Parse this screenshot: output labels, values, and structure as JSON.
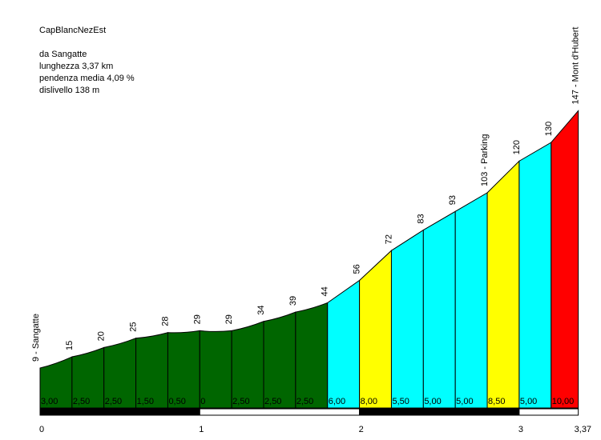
{
  "info": {
    "name": "CapBlancNezEst",
    "start": "da Sangatte",
    "length": "lunghezza 3,37 km",
    "avg_gradient": "pendenza media 4,09 %",
    "elevation_gain": "dislivello 138 m"
  },
  "colors": {
    "dark_green": "#006600",
    "cyan": "#00ffff",
    "yellow": "#ffff00",
    "red": "#ff0000",
    "outline": "#000000"
  },
  "chart_data": {
    "type": "area",
    "xlim": [
      0,
      3.37
    ],
    "ylim": [
      9,
      147
    ],
    "x_ticks": [
      {
        "value": 0,
        "label": "0"
      },
      {
        "value": 1,
        "label": "1"
      },
      {
        "value": 2,
        "label": "2"
      },
      {
        "value": 3,
        "label": "3"
      },
      {
        "value": 3.37,
        "label": "3,37"
      }
    ],
    "points": [
      {
        "x": 0,
        "elev": 9,
        "label": "9 - Sangatte"
      },
      {
        "x": 0.2,
        "elev": 15,
        "label": "15"
      },
      {
        "x": 0.4,
        "elev": 20,
        "label": "20"
      },
      {
        "x": 0.6,
        "elev": 25,
        "label": "25"
      },
      {
        "x": 0.8,
        "elev": 28,
        "label": "28"
      },
      {
        "x": 1.0,
        "elev": 29,
        "label": "29"
      },
      {
        "x": 1.2,
        "elev": 29,
        "label": "29"
      },
      {
        "x": 1.4,
        "elev": 34,
        "label": "34"
      },
      {
        "x": 1.6,
        "elev": 39,
        "label": "39"
      },
      {
        "x": 1.8,
        "elev": 44,
        "label": "44"
      },
      {
        "x": 2.0,
        "elev": 56,
        "label": "56"
      },
      {
        "x": 2.2,
        "elev": 72,
        "label": "72"
      },
      {
        "x": 2.4,
        "elev": 83,
        "label": "83"
      },
      {
        "x": 2.6,
        "elev": 93,
        "label": "93"
      },
      {
        "x": 2.8,
        "elev": 103,
        "label": "103 - Parking"
      },
      {
        "x": 3.0,
        "elev": 120,
        "label": "120"
      },
      {
        "x": 3.2,
        "elev": 130,
        "label": "130"
      },
      {
        "x": 3.37,
        "elev": 147,
        "label": "147 - Mont d'Hubert"
      }
    ],
    "segments": [
      {
        "gradient": "3,00",
        "color": "#006600"
      },
      {
        "gradient": "2,50",
        "color": "#006600"
      },
      {
        "gradient": "2,50",
        "color": "#006600"
      },
      {
        "gradient": "1,50",
        "color": "#006600"
      },
      {
        "gradient": "0,50",
        "color": "#006600"
      },
      {
        "gradient": "0",
        "color": "#006600"
      },
      {
        "gradient": "2,50",
        "color": "#006600"
      },
      {
        "gradient": "2,50",
        "color": "#006600"
      },
      {
        "gradient": "2,50",
        "color": "#006600"
      },
      {
        "gradient": "6,00",
        "color": "#00ffff"
      },
      {
        "gradient": "8,00",
        "color": "#ffff00"
      },
      {
        "gradient": "5,50",
        "color": "#00ffff"
      },
      {
        "gradient": "5,00",
        "color": "#00ffff"
      },
      {
        "gradient": "5,00",
        "color": "#00ffff"
      },
      {
        "gradient": "8,50",
        "color": "#ffff00"
      },
      {
        "gradient": "5,00",
        "color": "#00ffff"
      },
      {
        "gradient": "10,00",
        "color": "#ff0000"
      }
    ],
    "scale_bar": [
      {
        "from": 0,
        "to": 1,
        "color": "#000000"
      },
      {
        "from": 1,
        "to": 2,
        "color": "#ffffff"
      },
      {
        "from": 2,
        "to": 3,
        "color": "#000000"
      },
      {
        "from": 3,
        "to": 3.37,
        "color": "#ffffff"
      }
    ]
  }
}
